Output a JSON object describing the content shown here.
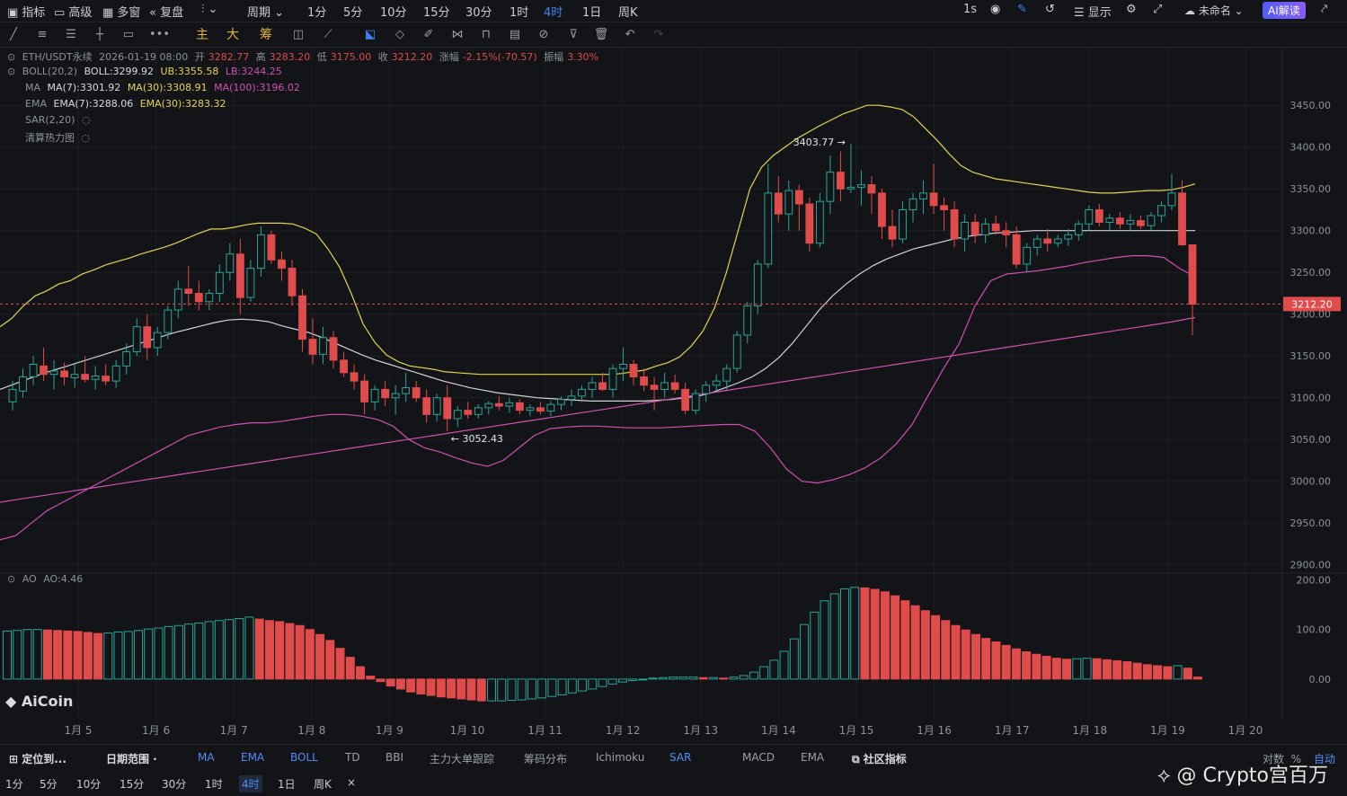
{
  "topbar": {
    "indicators": "指标",
    "advanced": "高级",
    "multi_window": "多窗",
    "replay": "复盘",
    "period": "周期",
    "intervals": [
      "1分",
      "5分",
      "10分",
      "15分",
      "30分",
      "1时",
      "4时",
      "1日",
      "周K"
    ],
    "active_interval": "4时",
    "right_interval": "1s",
    "display": "显示",
    "layout_name": "未命名",
    "ai_button": "AI解读"
  },
  "drawing_tools_cn": [
    "主",
    "大",
    "筹"
  ],
  "info": {
    "symbol": "ETH/USDT永续",
    "datetime": "2026-01-19 08:00",
    "open_label": "开",
    "open": "3282.77",
    "high_label": "高",
    "high": "3283.20",
    "low_label": "低",
    "low": "3175.00",
    "close_label": "收",
    "close": "3212.20",
    "change_label": "涨幅",
    "change": "-2.15%(-70.57)",
    "amplitude_label": "振幅",
    "amplitude": "3.30%",
    "boll_name": "BOLL(20,2)",
    "boll": "BOLL:3299.92",
    "ub": "UB:3355.58",
    "lb": "LB:3244.25",
    "ma_name": "MA",
    "ma7": "MA(7):3301.92",
    "ma30": "MA(30):3308.91",
    "ma100": "MA(100):3196.02",
    "ema_name": "EMA",
    "ema7": "EMA(7):3288.06",
    "ema30": "EMA(30):3283.32",
    "sar_name": "SAR(2,20)",
    "heatmap_name": "清算热力图",
    "ao_name": "AO",
    "ao_value": "AO:4.46"
  },
  "annotations": {
    "high_mark": "3403.77",
    "low_mark": "3052.43",
    "last_price": "3212.20"
  },
  "colors": {
    "up": "#26a69a",
    "down": "#e04b4b",
    "boll_band": "#e5d44b",
    "ma100": "#d24fb3",
    "background": "#131417"
  },
  "chart_data": [
    {
      "type": "candlestick",
      "title": "ETH/USDT永续 4时",
      "x_tick_labels": [
        "1月 5",
        "1月 6",
        "1月 7",
        "1月 8",
        "1月 9",
        "1月 10",
        "1月 11",
        "1月 12",
        "1月 13",
        "1月 14",
        "1月 15",
        "1月 16",
        "1月 17",
        "1月 18",
        "1月 19",
        "1月 20"
      ],
      "y_tick_labels": [
        "3450.00",
        "3400.00",
        "3350.00",
        "3300.00",
        "3250.00",
        "3200.00",
        "3150.00",
        "3100.00",
        "3050.00",
        "3000.00",
        "2950.00",
        "2900.00"
      ],
      "ylim": [
        2890,
        3475
      ],
      "grid": true,
      "ohlc": [
        [
          3095,
          3120,
          3085,
          3110
        ],
        [
          3108,
          3135,
          3100,
          3125
        ],
        [
          3125,
          3150,
          3115,
          3140
        ],
        [
          3138,
          3160,
          3120,
          3128
        ],
        [
          3128,
          3145,
          3110,
          3132
        ],
        [
          3132,
          3142,
          3115,
          3125
        ],
        [
          3124,
          3140,
          3112,
          3128
        ],
        [
          3128,
          3150,
          3118,
          3122
        ],
        [
          3122,
          3138,
          3110,
          3126
        ],
        [
          3126,
          3140,
          3115,
          3120
        ],
        [
          3120,
          3145,
          3112,
          3138
        ],
        [
          3138,
          3165,
          3128,
          3155
        ],
        [
          3155,
          3195,
          3150,
          3185
        ],
        [
          3185,
          3200,
          3145,
          3160
        ],
        [
          3160,
          3185,
          3150,
          3178
        ],
        [
          3178,
          3210,
          3170,
          3205
        ],
        [
          3205,
          3240,
          3195,
          3230
        ],
        [
          3230,
          3258,
          3210,
          3225
        ],
        [
          3225,
          3240,
          3205,
          3215
        ],
        [
          3215,
          3230,
          3205,
          3225
        ],
        [
          3225,
          3260,
          3215,
          3250
        ],
        [
          3250,
          3285,
          3240,
          3272
        ],
        [
          3272,
          3290,
          3200,
          3220
        ],
        [
          3220,
          3265,
          3215,
          3255
        ],
        [
          3255,
          3305,
          3245,
          3295
        ],
        [
          3295,
          3300,
          3260,
          3265
        ],
        [
          3265,
          3275,
          3240,
          3255
        ],
        [
          3255,
          3265,
          3210,
          3222
        ],
        [
          3222,
          3230,
          3155,
          3170
        ],
        [
          3170,
          3195,
          3140,
          3152
        ],
        [
          3152,
          3185,
          3140,
          3172
        ],
        [
          3172,
          3180,
          3135,
          3145
        ],
        [
          3145,
          3155,
          3125,
          3130
        ],
        [
          3130,
          3140,
          3110,
          3120
        ],
        [
          3120,
          3128,
          3080,
          3095
        ],
        [
          3095,
          3115,
          3085,
          3110
        ],
        [
          3110,
          3120,
          3090,
          3100
        ],
        [
          3100,
          3115,
          3080,
          3105
        ],
        [
          3105,
          3130,
          3095,
          3112
        ],
        [
          3112,
          3120,
          3095,
          3100
        ],
        [
          3100,
          3110,
          3070,
          3080
        ],
        [
          3080,
          3105,
          3072,
          3100
        ],
        [
          3100,
          3115,
          3060,
          3075
        ],
        [
          3075,
          3090,
          3065,
          3085
        ],
        [
          3085,
          3095,
          3075,
          3080
        ],
        [
          3080,
          3092,
          3075,
          3088
        ],
        [
          3088,
          3096,
          3080,
          3093
        ],
        [
          3093,
          3102,
          3085,
          3090
        ],
        [
          3090,
          3100,
          3082,
          3094
        ],
        [
          3094,
          3098,
          3080,
          3085
        ],
        [
          3085,
          3092,
          3078,
          3088
        ],
        [
          3088,
          3095,
          3080,
          3084
        ],
        [
          3084,
          3096,
          3078,
          3092
        ],
        [
          3092,
          3102,
          3085,
          3098
        ],
        [
          3098,
          3110,
          3090,
          3102
        ],
        [
          3102,
          3115,
          3095,
          3110
        ],
        [
          3110,
          3125,
          3100,
          3118
        ],
        [
          3118,
          3130,
          3108,
          3110
        ],
        [
          3110,
          3140,
          3100,
          3135
        ],
        [
          3135,
          3160,
          3120,
          3140
        ],
        [
          3140,
          3145,
          3115,
          3125
        ],
        [
          3125,
          3135,
          3108,
          3115
        ],
        [
          3115,
          3125,
          3085,
          3110
        ],
        [
          3110,
          3130,
          3100,
          3118
        ],
        [
          3118,
          3128,
          3105,
          3110
        ],
        [
          3110,
          3118,
          3080,
          3085
        ],
        [
          3085,
          3110,
          3080,
          3105
        ],
        [
          3105,
          3120,
          3095,
          3115
        ],
        [
          3115,
          3128,
          3108,
          3120
        ],
        [
          3120,
          3140,
          3110,
          3135
        ],
        [
          3135,
          3180,
          3130,
          3175
        ],
        [
          3175,
          3215,
          3165,
          3210
        ],
        [
          3210,
          3265,
          3200,
          3260
        ],
        [
          3260,
          3380,
          3255,
          3345
        ],
        [
          3345,
          3365,
          3310,
          3320
        ],
        [
          3320,
          3360,
          3300,
          3348
        ],
        [
          3348,
          3355,
          3300,
          3332
        ],
        [
          3332,
          3340,
          3275,
          3285
        ],
        [
          3285,
          3345,
          3280,
          3335
        ],
        [
          3335,
          3390,
          3320,
          3370
        ],
        [
          3370,
          3395,
          3335,
          3350
        ],
        [
          3350,
          3404,
          3345,
          3352
        ],
        [
          3352,
          3372,
          3330,
          3355
        ],
        [
          3355,
          3365,
          3320,
          3345
        ],
        [
          3345,
          3350,
          3290,
          3305
        ],
        [
          3305,
          3325,
          3280,
          3290
        ],
        [
          3290,
          3335,
          3285,
          3325
        ],
        [
          3325,
          3345,
          3310,
          3338
        ],
        [
          3338,
          3360,
          3320,
          3345
        ],
        [
          3345,
          3380,
          3320,
          3330
        ],
        [
          3330,
          3340,
          3300,
          3325
        ],
        [
          3325,
          3335,
          3280,
          3290
        ],
        [
          3290,
          3320,
          3275,
          3310
        ],
        [
          3310,
          3320,
          3285,
          3295
        ],
        [
          3295,
          3315,
          3285,
          3308
        ],
        [
          3308,
          3318,
          3295,
          3300
        ],
        [
          3300,
          3310,
          3280,
          3295
        ],
        [
          3295,
          3305,
          3255,
          3260
        ],
        [
          3260,
          3285,
          3250,
          3280
        ],
        [
          3280,
          3295,
          3270,
          3290
        ],
        [
          3290,
          3302,
          3275,
          3285
        ],
        [
          3285,
          3295,
          3280,
          3290
        ],
        [
          3290,
          3302,
          3282,
          3295
        ],
        [
          3295,
          3312,
          3288,
          3308
        ],
        [
          3308,
          3330,
          3300,
          3325
        ],
        [
          3325,
          3332,
          3305,
          3310
        ],
        [
          3310,
          3320,
          3300,
          3315
        ],
        [
          3315,
          3322,
          3302,
          3308
        ],
        [
          3308,
          3320,
          3300,
          3312
        ],
        [
          3312,
          3318,
          3302,
          3306
        ],
        [
          3306,
          3322,
          3300,
          3318
        ],
        [
          3318,
          3335,
          3310,
          3330
        ],
        [
          3330,
          3368,
          3325,
          3345
        ],
        [
          3345,
          3360,
          3282,
          3283
        ],
        [
          3283,
          3283,
          3175,
          3212
        ]
      ],
      "series": [
        {
          "name": "UB",
          "values": [
            3185,
            3195,
            3210,
            3222,
            3228,
            3236,
            3240,
            3248,
            3253,
            3259,
            3263,
            3267,
            3272,
            3276,
            3280,
            3285,
            3291,
            3297,
            3302,
            3302,
            3304,
            3307,
            3309,
            3309,
            3309,
            3308,
            3303,
            3296,
            3278,
            3256,
            3224,
            3188,
            3166,
            3151,
            3143,
            3138,
            3136,
            3134,
            3131,
            3130,
            3129,
            3128,
            3128,
            3128,
            3128,
            3128,
            3128,
            3128,
            3128,
            3128,
            3128,
            3128,
            3128,
            3129,
            3131,
            3133,
            3138,
            3142,
            3149,
            3162,
            3180,
            3208,
            3250,
            3300,
            3350,
            3376,
            3390,
            3400,
            3410,
            3418,
            3426,
            3433,
            3440,
            3445,
            3450,
            3450,
            3448,
            3445,
            3436,
            3422,
            3408,
            3392,
            3378,
            3370,
            3366,
            3362,
            3360,
            3358,
            3356,
            3354,
            3352,
            3350,
            3348,
            3346,
            3345,
            3345,
            3346,
            3347,
            3348,
            3348,
            3349,
            3352,
            3356
          ]
        },
        {
          "name": "BOLL",
          "values": [
            3110,
            3116,
            3122,
            3128,
            3133,
            3138,
            3143,
            3148,
            3153,
            3158,
            3163,
            3168,
            3173,
            3178,
            3182,
            3186,
            3190,
            3193,
            3194,
            3193,
            3191,
            3186,
            3182,
            3178,
            3172,
            3165,
            3158,
            3151,
            3145,
            3140,
            3135,
            3130,
            3125,
            3120,
            3116,
            3112,
            3109,
            3106,
            3104,
            3102,
            3100,
            3099,
            3098,
            3097,
            3096,
            3096,
            3096,
            3096,
            3096,
            3097,
            3098,
            3100,
            3102,
            3106,
            3112,
            3118,
            3125,
            3135,
            3148,
            3165,
            3185,
            3205,
            3222,
            3236,
            3248,
            3258,
            3266,
            3272,
            3278,
            3282,
            3286,
            3290,
            3293,
            3295,
            3297,
            3298,
            3299,
            3300,
            3300,
            3300,
            3300,
            3300,
            3300,
            3300,
            3300,
            3300,
            3300,
            3300,
            3300,
            3300
          ]
        },
        {
          "name": "LB",
          "values": [
            2930,
            2935,
            2950,
            2965,
            2975,
            2985,
            2995,
            3005,
            3015,
            3025,
            3035,
            3045,
            3055,
            3060,
            3065,
            3068,
            3070,
            3070,
            3072,
            3075,
            3078,
            3080,
            3080,
            3078,
            3074,
            3066,
            3050,
            3040,
            3035,
            3028,
            3022,
            3018,
            3025,
            3040,
            3055,
            3063,
            3065,
            3066,
            3066,
            3065,
            3064,
            3064,
            3064,
            3065,
            3066,
            3067,
            3068,
            3068,
            3060,
            3040,
            3015,
            3000,
            2998,
            3002,
            3008,
            3016,
            3028,
            3045,
            3068,
            3102,
            3135,
            3165,
            3210,
            3240,
            3248,
            3250,
            3252,
            3255,
            3258,
            3262,
            3265,
            3268,
            3270,
            3270,
            3268,
            3255,
            3245
          ]
        },
        {
          "name": "MA100",
          "values": [
            2975,
            2980,
            2985,
            2990,
            2995,
            3000,
            3005,
            3010,
            3015,
            3020,
            3025,
            3030,
            3035,
            3040,
            3045,
            3050,
            3055,
            3060,
            3065,
            3070,
            3075,
            3080,
            3085,
            3090,
            3095,
            3100,
            3105,
            3110,
            3115,
            3120,
            3125,
            3130,
            3135,
            3140,
            3145,
            3150,
            3155,
            3160,
            3165,
            3170,
            3175,
            3180,
            3185,
            3190,
            3196
          ]
        }
      ]
    },
    {
      "type": "bar",
      "title": "AO",
      "y_tick_labels": [
        "200.00",
        "100.00",
        "0.00"
      ],
      "ylim": [
        -80,
        210
      ],
      "values": [
        97,
        98,
        100,
        100,
        99,
        98,
        97,
        96,
        94,
        92,
        93,
        95,
        96,
        98,
        101,
        103,
        106,
        108,
        111,
        113,
        116,
        118,
        120,
        122,
        125,
        121,
        118,
        116,
        112,
        108,
        100,
        90,
        78,
        62,
        44,
        25,
        6,
        -5,
        -14,
        -20,
        -26,
        -30,
        -33,
        -36,
        -38,
        -40,
        -42,
        -44,
        -44,
        -44,
        -43,
        -42,
        -40,
        -38,
        -35,
        -32,
        -28,
        -24,
        -20,
        -15,
        -10,
        -6,
        -3,
        -1,
        2,
        3,
        4,
        4,
        4,
        3,
        3,
        2,
        4,
        7,
        14,
        25,
        38,
        56,
        81,
        110,
        135,
        158,
        172,
        182,
        185,
        184,
        181,
        176,
        168,
        158,
        148,
        138,
        128,
        118,
        108,
        99,
        90,
        82,
        75,
        68,
        61,
        55,
        50,
        46,
        42,
        40,
        41,
        42,
        41,
        39,
        37,
        35,
        32,
        29,
        27,
        25,
        27,
        22,
        4
      ]
    }
  ]
}
